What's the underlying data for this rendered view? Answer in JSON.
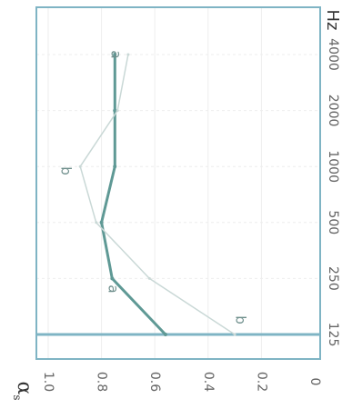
{
  "chart_data": {
    "type": "line",
    "title": "",
    "xlabel": "",
    "x_unit": "Hz",
    "ylabel": "α_s",
    "ylabel_main": "α",
    "ylabel_sub": "s",
    "categories": [
      "125",
      "250",
      "500",
      "1000",
      "2000",
      "4000"
    ],
    "yticks": [
      "0",
      "0.2",
      "0.4",
      "0.6",
      "0.8",
      "1.0"
    ],
    "ylim": [
      0,
      1.0
    ],
    "grid": true,
    "orientation": "rotated 90° clockwise",
    "series": [
      {
        "name": "a",
        "color": "#5f9995",
        "values": [
          0.56,
          0.76,
          0.8,
          0.75,
          0.75,
          0.75
        ]
      },
      {
        "name": "b",
        "color": "#c9d8d6",
        "values": [
          0.3,
          0.62,
          0.82,
          0.88,
          0.74,
          0.7
        ]
      }
    ],
    "frame_color": "#7fb4c4",
    "grid_color": "#eeeeee"
  }
}
